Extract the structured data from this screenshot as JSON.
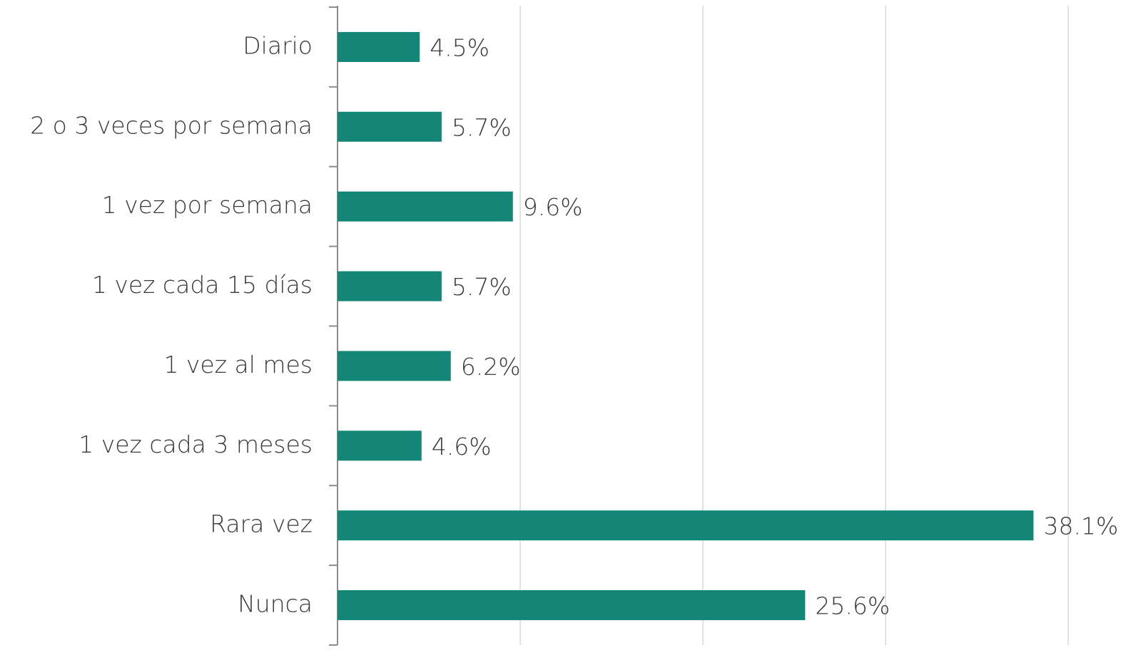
{
  "chart_data": {
    "type": "bar",
    "orientation": "horizontal",
    "categories": [
      "Diario",
      "2 o 3 veces por semana",
      "1 vez por semana",
      "1 vez cada 15 días",
      "1 vez al mes",
      "1 vez cada 3 meses",
      "Rara vez",
      "Nunca"
    ],
    "values": [
      4.5,
      5.7,
      9.6,
      5.7,
      6.2,
      4.6,
      38.1,
      25.6
    ],
    "value_labels": [
      "4.5%",
      "5.7%",
      "9.6%",
      "5.7%",
      "6.2%",
      "4.6%",
      "38.1%",
      "25.6%"
    ],
    "color": "#138677",
    "xlim": [
      0,
      40
    ],
    "xticks": [
      0,
      10,
      20,
      30,
      40
    ],
    "grid": true
  }
}
